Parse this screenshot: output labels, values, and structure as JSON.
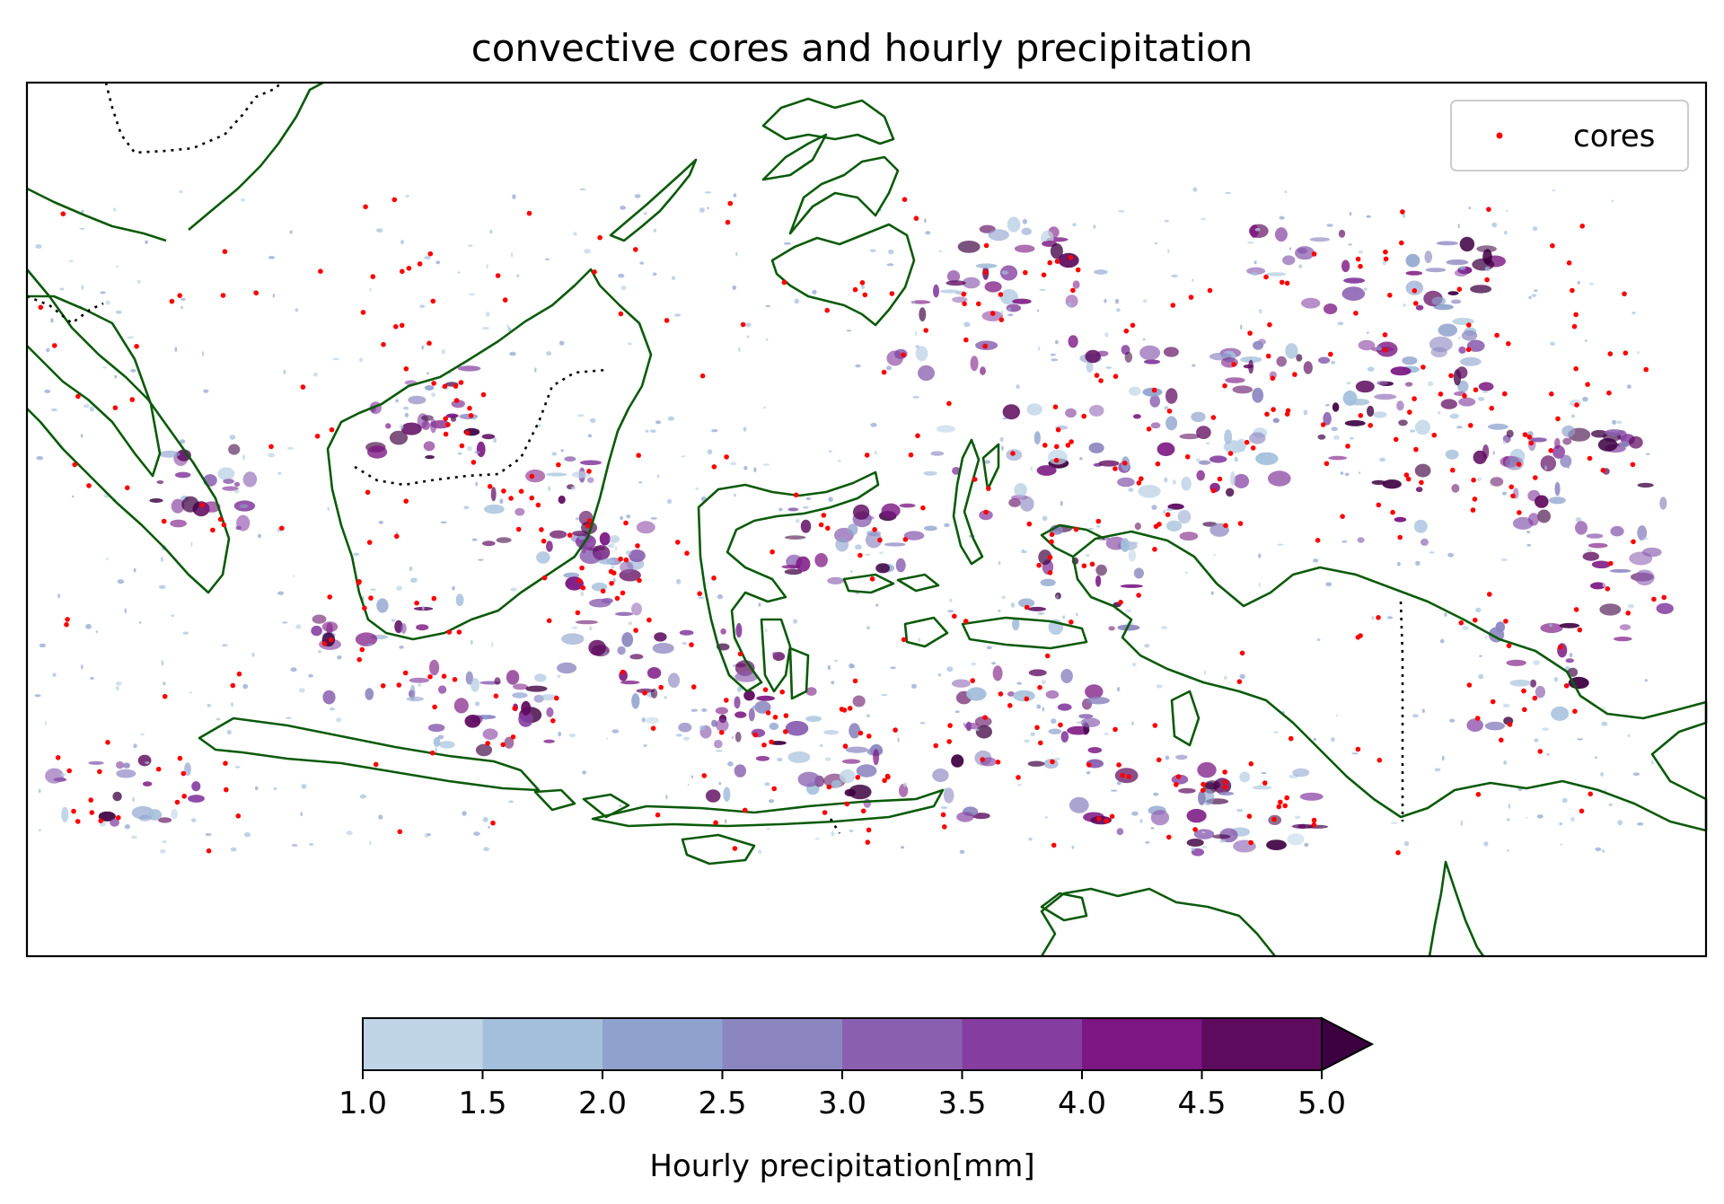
{
  "title": "convective cores and hourly precipitation",
  "legend": {
    "label": "cores",
    "marker_color": "#ff0000",
    "placement": "top-right"
  },
  "coastline_color": "#0b5a0b",
  "border_style": "dotted",
  "colorbar": {
    "label": "Hourly precipitation[mm]",
    "ticks": [
      "1.0",
      "1.5",
      "2.0",
      "2.5",
      "3.0",
      "3.5",
      "4.0",
      "4.5",
      "5.0"
    ],
    "colors": [
      "#bfd4e6",
      "#a3bfdb",
      "#8fa2ce",
      "#8c86c0",
      "#8a5fb0",
      "#853ea0",
      "#7b1682",
      "#5e0a5f",
      "#3d0040"
    ],
    "extend": "max"
  },
  "chart_data": {
    "type": "scatter",
    "title": "convective cores and hourly precipitation",
    "series": [
      {
        "name": "cores",
        "color": "#ff0000"
      }
    ],
    "colorbar_range": [
      1.0,
      5.0
    ],
    "colorbar_step": 0.5
  }
}
